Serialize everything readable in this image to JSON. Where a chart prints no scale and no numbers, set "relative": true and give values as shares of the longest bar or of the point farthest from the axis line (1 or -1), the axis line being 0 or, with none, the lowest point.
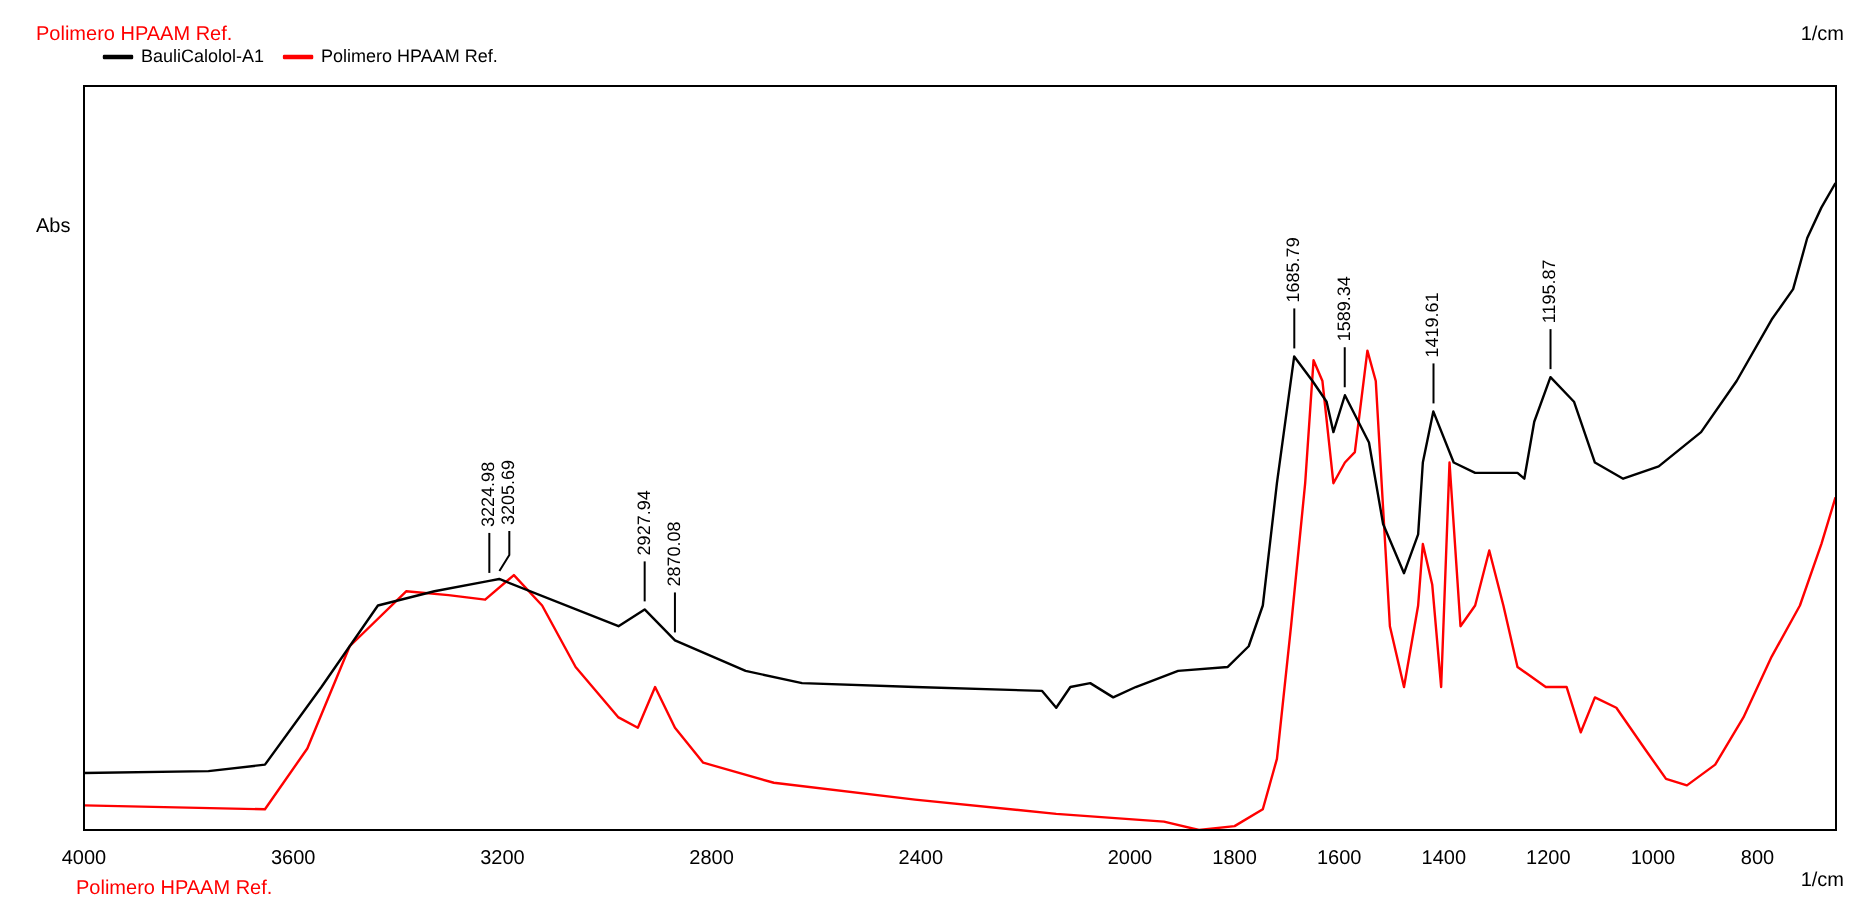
{
  "chart_data": {
    "type": "line",
    "title": "Polimero HPAAM Ref.",
    "xlabel": "1/cm",
    "ylabel": "Abs",
    "relative": true,
    "grid": false,
    "legend": "top left",
    "marker": "none",
    "line_style": "solid",
    "xlim": [
      4000,
      650
    ],
    "xticks": [
      4000,
      3600,
      3200,
      2800,
      2400,
      2000,
      1800,
      1600,
      1400,
      1200,
      1000,
      800
    ],
    "series": [
      {
        "name": "BauliCalolol-A1",
        "color": "#000000",
        "x": [
          4000,
          3762,
          3654,
          3546,
          3438,
          3330,
          3225,
          3206,
          2978,
          2928,
          2870,
          2735,
          2627,
          2411,
          2168,
          2141,
          2114,
          2076,
          2032,
          1989,
          1908,
          1813,
          1773,
          1746,
          1719,
          1686,
          1651,
          1624,
          1611,
          1589,
          1543,
          1516,
          1476,
          1449,
          1440,
          1420,
          1381,
          1340,
          1259,
          1246,
          1227,
          1196,
          1151,
          1111,
          1057,
          989,
          908,
          840,
          773,
          732,
          705,
          678,
          651
        ],
        "values": [
          0.088,
          0.091,
          0.101,
          0.221,
          0.347,
          0.369,
          0.385,
          0.388,
          0.315,
          0.341,
          0.293,
          0.246,
          0.227,
          0.221,
          0.215,
          0.189,
          0.221,
          0.227,
          0.205,
          0.221,
          0.246,
          0.252,
          0.284,
          0.347,
          0.536,
          0.732,
          0.694,
          0.662,
          0.615,
          0.672,
          0.599,
          0.473,
          0.397,
          0.457,
          0.568,
          0.647,
          0.568,
          0.552,
          0.552,
          0.543,
          0.631,
          0.7,
          0.662,
          0.568,
          0.543,
          0.562,
          0.615,
          0.694,
          0.789,
          0.836,
          0.915,
          0.962,
          1
        ]
      },
      {
        "name": "Polimero HPAAM Ref.",
        "color": "#ff0000",
        "x": [
          4000,
          3654,
          3573,
          3492,
          3384,
          3303,
          3233,
          3178,
          3124,
          3060,
          2978,
          2941,
          2908,
          2870,
          2816,
          2681,
          2411,
          2141,
          1935,
          1868,
          1800,
          1746,
          1719,
          1692,
          1665,
          1649,
          1632,
          1611,
          1589,
          1570,
          1546,
          1530,
          1503,
          1476,
          1449,
          1440,
          1422,
          1405,
          1389,
          1368,
          1340,
          1313,
          1286,
          1259,
          1205,
          1165,
          1138,
          1111,
          1070,
          1016,
          975,
          935,
          881,
          827,
          773,
          719,
          678,
          651
        ],
        "values": [
          0.038,
          0.032,
          0.126,
          0.284,
          0.369,
          0.363,
          0.356,
          0.394,
          0.347,
          0.252,
          0.174,
          0.158,
          0.221,
          0.158,
          0.104,
          0.073,
          0.047,
          0.025,
          0.013,
          0,
          0.006,
          0.032,
          0.11,
          0.315,
          0.536,
          0.726,
          0.694,
          0.536,
          0.568,
          0.584,
          0.741,
          0.694,
          0.315,
          0.221,
          0.347,
          0.442,
          0.379,
          0.221,
          0.568,
          0.315,
          0.347,
          0.432,
          0.347,
          0.252,
          0.221,
          0.221,
          0.151,
          0.205,
          0.189,
          0.126,
          0.079,
          0.069,
          0.101,
          0.174,
          0.268,
          0.347,
          0.442,
          0.514
        ]
      }
    ],
    "annotations": [
      "1/cm",
      "Polimero HPAAM Ref.",
      {
        "text": "3224.98",
        "x": 3224.98,
        "y": 0.385
      },
      {
        "text": "3205.69",
        "x": 3205.69,
        "y": 0.388
      },
      {
        "text": "2927.94",
        "x": 2927.94,
        "y": 0.341
      },
      {
        "text": "2870.08",
        "x": 2870.08,
        "y": 0.293
      },
      {
        "text": "1685.79",
        "x": 1685.79,
        "y": 0.732
      },
      {
        "text": "1589.34",
        "x": 1589.34,
        "y": 0.672
      },
      {
        "text": "1419.61",
        "x": 1419.61,
        "y": 0.647
      },
      {
        "text": "1195.87",
        "x": 1195.87,
        "y": 0.7
      }
    ]
  }
}
